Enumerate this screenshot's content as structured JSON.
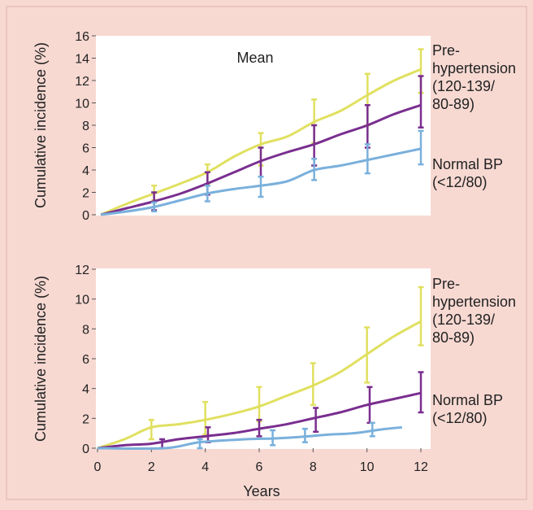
{
  "chart_data": [
    {
      "type": "line",
      "title": "",
      "annotation": "Mean",
      "xlabel": "",
      "ylabel": "Cumulative incidence (%)",
      "ylim": [
        0,
        16
      ],
      "yticks": [
        "0",
        "2",
        "4",
        "6",
        "8",
        "10",
        "12",
        "14",
        "16"
      ],
      "xlim": [
        0,
        12
      ],
      "legend_entries": [
        {
          "lines": [
            "Pre-",
            "hypertension",
            "(120-139/",
            "80-89)"
          ]
        },
        {
          "lines": [
            "Normal BP",
            "(<12/80)"
          ]
        }
      ],
      "series": [
        {
          "color": "#e0e060",
          "x": [
            0,
            1,
            2,
            3,
            4,
            5,
            6,
            7,
            8,
            9,
            10,
            11,
            12
          ],
          "values": [
            0,
            1.0,
            1.9,
            2.8,
            3.8,
            5.2,
            6.3,
            7.0,
            8.3,
            9.3,
            10.7,
            12.0,
            13.0
          ],
          "err_x": [
            2,
            4,
            6,
            8,
            10,
            12
          ],
          "err_lo": [
            1.3,
            2.7,
            4.4,
            6.4,
            8.0,
            10.9
          ],
          "err_hi": [
            2.6,
            4.5,
            7.3,
            10.3,
            12.6,
            14.8
          ]
        },
        {
          "color": "#7a2e8f",
          "x": [
            0,
            1,
            2,
            3,
            4,
            5,
            6,
            7,
            8,
            9,
            10,
            11,
            12
          ],
          "values": [
            0,
            0.6,
            1.2,
            1.9,
            2.8,
            3.8,
            4.8,
            5.6,
            6.3,
            7.2,
            8.0,
            9.0,
            9.8
          ],
          "err_x": [
            2,
            4,
            6,
            8,
            10,
            12
          ],
          "err_lo": [
            0.4,
            1.8,
            3.4,
            4.4,
            6.0,
            7.8
          ],
          "err_hi": [
            2.0,
            3.8,
            6.0,
            8.0,
            9.8,
            12.4
          ]
        },
        {
          "color": "#7ab0dc",
          "x": [
            0,
            1,
            2,
            3,
            4,
            5,
            6,
            7,
            8,
            9,
            10,
            11,
            12
          ],
          "values": [
            0,
            0.3,
            0.7,
            1.3,
            1.9,
            2.3,
            2.6,
            3.0,
            4.0,
            4.4,
            4.9,
            5.4,
            5.9
          ],
          "err_x": [
            2,
            4,
            6,
            8,
            10,
            12
          ],
          "err_lo": [
            0.3,
            1.2,
            1.6,
            3.1,
            3.7,
            4.5
          ],
          "err_hi": [
            1.1,
            2.6,
            3.4,
            5.0,
            6.3,
            7.5
          ]
        }
      ]
    },
    {
      "type": "line",
      "title": "",
      "xlabel": "Years",
      "ylabel": "Cumulative incidence (%)",
      "ylim": [
        0,
        12
      ],
      "yticks": [
        "0",
        "2",
        "4",
        "6",
        "8",
        "10",
        "12"
      ],
      "xlim": [
        0,
        12
      ],
      "xticks": [
        "0",
        "2",
        "4",
        "6",
        "8",
        "10",
        "12"
      ],
      "legend_entries": [
        {
          "lines": [
            "Pre-",
            "hypertension",
            "(120-139/",
            "80-89)"
          ]
        },
        {
          "lines": [
            "Normal BP",
            "(<12/80)"
          ]
        }
      ],
      "series": [
        {
          "color": "#e0e060",
          "x": [
            0,
            1,
            2,
            3,
            4,
            5,
            6,
            7,
            8,
            9,
            10,
            11,
            12
          ],
          "values": [
            0,
            0.6,
            1.4,
            1.6,
            1.9,
            2.3,
            2.8,
            3.5,
            4.2,
            5.1,
            6.3,
            7.5,
            8.5
          ],
          "err_x": [
            2,
            4,
            6,
            8,
            10,
            12
          ],
          "err_lo": [
            0.6,
            0.9,
            1.8,
            2.9,
            4.4,
            6.9
          ],
          "err_hi": [
            1.9,
            3.1,
            4.1,
            5.7,
            8.1,
            10.8
          ]
        },
        {
          "color": "#7a2e8f",
          "x": [
            0,
            1,
            2,
            3,
            4,
            5,
            6,
            7,
            8,
            9,
            10,
            11,
            12
          ],
          "values": [
            0,
            0.2,
            0.3,
            0.6,
            0.8,
            1.0,
            1.3,
            1.6,
            2.0,
            2.4,
            2.9,
            3.3,
            3.7
          ],
          "err_x": [
            2.4,
            4.1,
            6.0,
            8.1,
            10.1,
            12
          ],
          "err_lo": [
            0.0,
            0.4,
            0.8,
            1.1,
            1.7,
            2.4
          ],
          "err_hi": [
            0.6,
            1.4,
            1.9,
            2.7,
            4.1,
            5.1
          ]
        },
        {
          "color": "#7ab0dc",
          "x": [
            0,
            2.5,
            3.8,
            5.5,
            6.5,
            7.5,
            8.5,
            9.5,
            10.5,
            11.3
          ],
          "values": [
            0,
            0,
            0.4,
            0.6,
            0.65,
            0.75,
            0.9,
            1.0,
            1.25,
            1.4
          ],
          "err_x": [
            3.8,
            6.5,
            7.7,
            10.2
          ],
          "err_lo": [
            0.0,
            0.2,
            0.4,
            0.8
          ],
          "err_hi": [
            0.6,
            1.2,
            1.3,
            1.7
          ]
        }
      ]
    }
  ]
}
